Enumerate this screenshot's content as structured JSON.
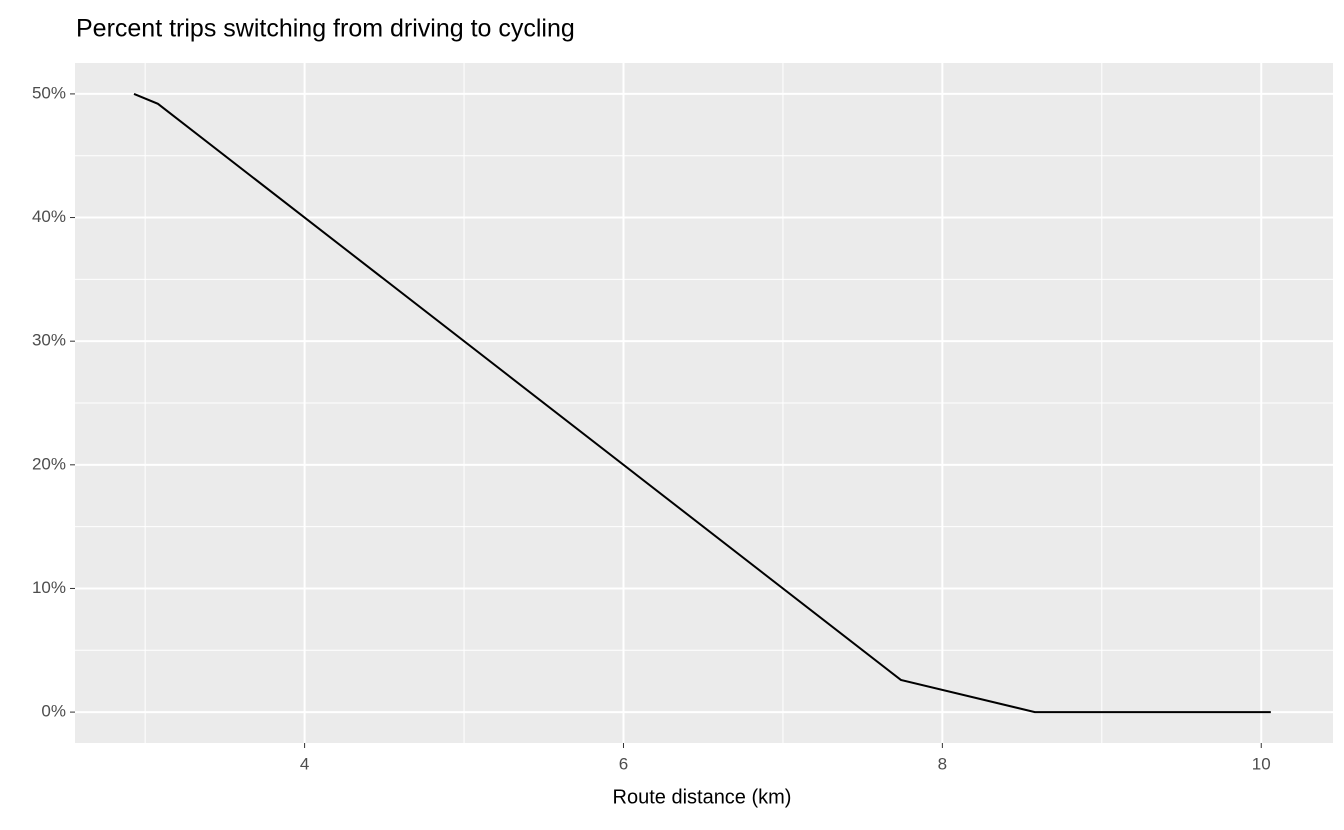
{
  "chart_data": {
    "type": "line",
    "title": "Percent trips switching from driving to cycling",
    "x_label": "Route distance (km)",
    "x": [
      2.93,
      3.08,
      7.74,
      8.58,
      10.06
    ],
    "series": [
      {
        "color": "#000000",
        "values": [
          50,
          49.2,
          2.6,
          0,
          0
        ]
      }
    ],
    "xlim": [
      2.56,
      10.45
    ],
    "xticks": [
      4,
      6,
      8,
      10
    ],
    "xminor": [
      3,
      5,
      7,
      9
    ],
    "ylim": [
      -2.5,
      52.5
    ],
    "yticks": [
      {
        "value": 0,
        "label": "0%"
      },
      {
        "value": 10,
        "label": "10%"
      },
      {
        "value": 20,
        "label": "20%"
      },
      {
        "value": 30,
        "label": "30%"
      },
      {
        "value": 40,
        "label": "40%"
      },
      {
        "value": 50,
        "label": "50%"
      }
    ],
    "yminor": [
      5,
      15,
      25,
      35,
      45
    ],
    "grid": true
  }
}
